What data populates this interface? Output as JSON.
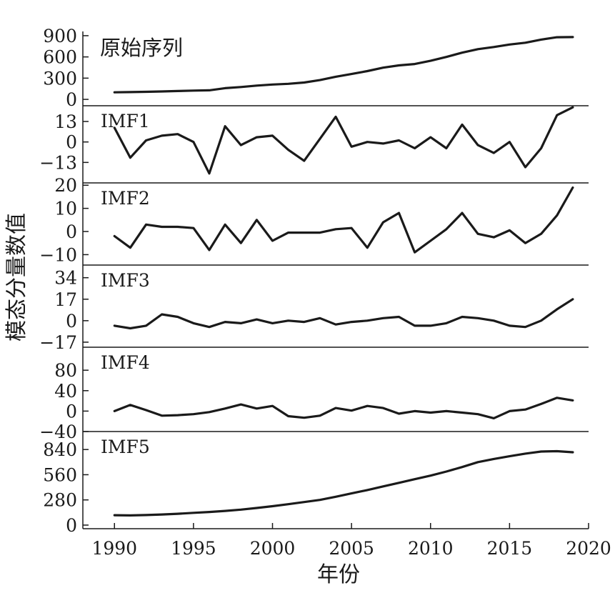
{
  "chart_data": {
    "type": "line",
    "xlabel": "年份",
    "ylabel": "模态分量数值",
    "x_ticks": [
      1990,
      1995,
      2000,
      2005,
      2010,
      2015,
      2020
    ],
    "xlim": [
      1988,
      2020
    ],
    "x": [
      1990,
      1991,
      1992,
      1993,
      1994,
      1995,
      1996,
      1997,
      1998,
      1999,
      2000,
      2001,
      2002,
      2003,
      2004,
      2005,
      2006,
      2007,
      2008,
      2009,
      2010,
      2011,
      2012,
      2013,
      2014,
      2015,
      2016,
      2017,
      2018,
      2019
    ],
    "panels": [
      {
        "title": "原始序列",
        "ylim": [
          -90,
          960
        ],
        "y_ticks": [
          900,
          600,
          300,
          0
        ],
        "values": [
          100,
          103,
          107,
          112,
          118,
          124,
          128,
          158,
          175,
          195,
          210,
          220,
          238,
          272,
          320,
          358,
          400,
          448,
          480,
          500,
          545,
          600,
          660,
          710,
          740,
          775,
          800,
          845,
          878,
          880
        ]
      },
      {
        "title": "IMF1",
        "ylim": [
          -26,
          23
        ],
        "y_ticks": [
          13,
          0,
          -13
        ],
        "values": [
          9,
          -10,
          1,
          4,
          5,
          0,
          -20,
          10,
          -2,
          3,
          4,
          -5,
          -12,
          2,
          16,
          -3,
          0,
          -1,
          1,
          -4,
          3,
          -4,
          11,
          -2,
          -7,
          0,
          -16,
          -4,
          17,
          22
        ]
      },
      {
        "title": "IMF2",
        "ylim": [
          -14.5,
          21
        ],
        "y_ticks": [
          20,
          10,
          0,
          -10
        ],
        "values": [
          -2,
          -7,
          3,
          2,
          2,
          1.5,
          -8,
          3,
          -5,
          5,
          -4,
          -0.5,
          -0.5,
          -0.5,
          1,
          1.5,
          -7,
          4,
          8,
          -9,
          -4,
          1,
          8,
          -1,
          -2.5,
          0.5,
          -5,
          -1,
          7,
          19
        ]
      },
      {
        "title": "IMF3",
        "ylim": [
          -21,
          44
        ],
        "y_ticks": [
          34,
          17,
          0,
          -17
        ],
        "values": [
          -4,
          -6,
          -4,
          5,
          3,
          -2,
          -5,
          -1,
          -2,
          1,
          -2,
          0,
          -1,
          2,
          -3,
          -1,
          0,
          2,
          3,
          -4,
          -4,
          -2,
          3,
          2,
          0,
          -4,
          -5,
          0,
          9,
          17
        ]
      },
      {
        "title": "IMF4",
        "ylim": [
          -40,
          125
        ],
        "y_ticks": [
          80,
          40,
          0,
          -40
        ],
        "values": [
          0,
          12,
          2,
          -9,
          -8,
          -6,
          -2,
          5,
          13,
          5,
          10,
          -10,
          -13,
          -9,
          6,
          1,
          10,
          6,
          -5,
          0,
          -3,
          0,
          -3,
          -6,
          -14,
          0,
          3,
          14,
          26,
          21
        ]
      },
      {
        "title": "IMF5",
        "ylim": [
          -40,
          1040
        ],
        "y_ticks": [
          840,
          560,
          280,
          0
        ],
        "values": [
          110,
          108,
          112,
          118,
          126,
          136,
          146,
          158,
          172,
          190,
          210,
          232,
          256,
          280,
          315,
          352,
          390,
          430,
          470,
          510,
          550,
          595,
          645,
          700,
          735,
          765,
          795,
          818,
          822,
          810
        ]
      }
    ]
  }
}
